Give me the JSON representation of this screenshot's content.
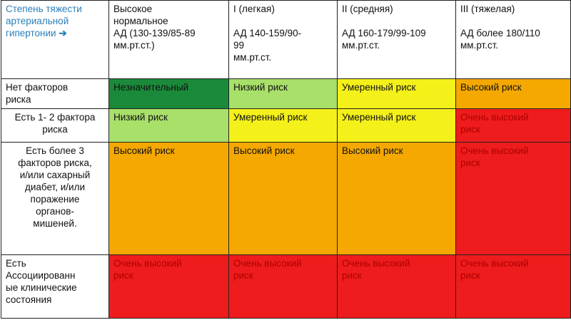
{
  "colors": {
    "negligible": "#1a8a3a",
    "low": "#a8e06a",
    "moderate": "#f4f01a",
    "high": "#f5a800",
    "very_high": "#ee1c1c"
  },
  "corner": {
    "line1": "Степень тяжести",
    "line2": "артериальной",
    "line3": "гипертонии",
    "arrow_icon": "arrow-right-icon",
    "arrow": "➔"
  },
  "columns": [
    {
      "line1": "Высокое",
      "line2": "нормальное",
      "line3": "АД (130-139/85-89",
      "line4": "мм.рт.ст.)"
    },
    {
      "line1": "I (легкая)",
      "line2": "",
      "line3": "АД 140-159/90-",
      "line4": "99",
      "line5": "мм.рт.ст."
    },
    {
      "line1": "II (средняя)",
      "line2": "",
      "line3": "АД 160-179/99-109",
      "line4": "мм.рт.ст."
    },
    {
      "line1": "III (тяжелая)",
      "line2": "",
      "line3": "АД более 180/110",
      "line4": "мм.рт.ст."
    }
  ],
  "rows": [
    {
      "header": [
        "Нет факторов",
        "риска"
      ],
      "cells": [
        {
          "label": "Незначительный",
          "level": "negligible"
        },
        {
          "label": "Низкий риск",
          "level": "low"
        },
        {
          "label": "Умеренный риск",
          "level": "moderate"
        },
        {
          "label": "Высокий риск",
          "level": "high"
        }
      ]
    },
    {
      "header": [
        "Есть 1- 2 фактора",
        "риска"
      ],
      "cells": [
        {
          "label": "Низкий риск",
          "level": "low"
        },
        {
          "label": "Умеренный риск",
          "level": "moderate"
        },
        {
          "label": "Умеренный риск",
          "level": "moderate"
        },
        {
          "label": "Очень высокий",
          "label2": "риск",
          "level": "very_high"
        }
      ]
    },
    {
      "header": [
        "Есть более 3",
        "факторов риска,",
        "и/или сахарный",
        "диабет, и/или",
        "поражение",
        "органов-",
        "мишеней."
      ],
      "cells": [
        {
          "label": "Высокий риск",
          "level": "high"
        },
        {
          "label": "Высокий риск",
          "level": "high"
        },
        {
          "label": "Высокий риск",
          "level": "high"
        },
        {
          "label": "Очень высокий",
          "label2": "риск",
          "level": "very_high"
        }
      ]
    },
    {
      "header": [
        "Есть",
        "Ассоциированн",
        "ые клинические",
        "состояния"
      ],
      "cells": [
        {
          "label": "Очень высокий",
          "label2": "риск",
          "level": "very_high"
        },
        {
          "label": "Очень высокий",
          "label2": "риск",
          "level": "very_high"
        },
        {
          "label": "Очень высокий",
          "label2": "риск",
          "level": "very_high"
        },
        {
          "label": "Очень высокий",
          "label2": "риск",
          "level": "very_high"
        }
      ]
    }
  ]
}
